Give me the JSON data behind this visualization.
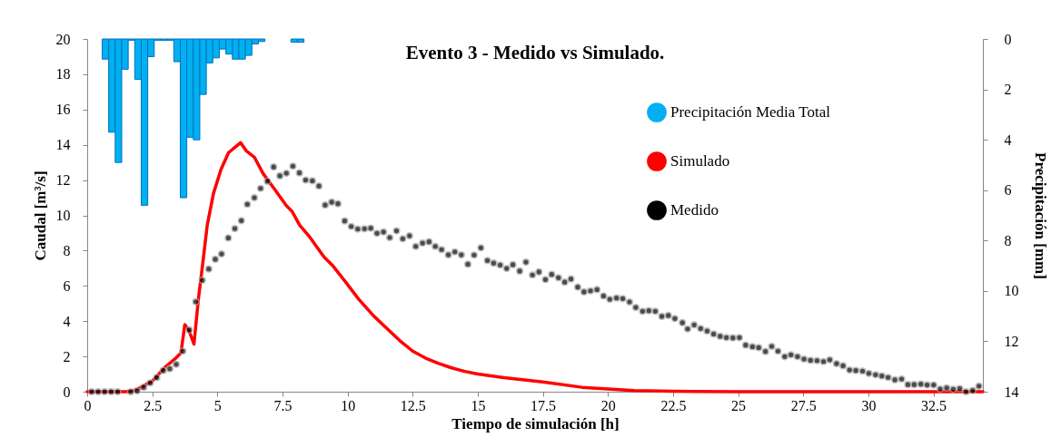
{
  "chart_data": {
    "type": "scatter",
    "title": "Evento 3 - Medido vs Simulado.",
    "xlabel": "Tiempo de simulación [h]",
    "ylabel": "Caudal [m³/s]",
    "y2label": "Precipitación [mm]",
    "xlim": [
      0,
      34.4
    ],
    "xticks": [
      0,
      2.5,
      5,
      7.5,
      10,
      12.5,
      15,
      17.5,
      20,
      22.5,
      25,
      27.5,
      30,
      32.5
    ],
    "ylim": [
      0,
      20
    ],
    "yticks": [
      0,
      2,
      4,
      6,
      8,
      10,
      12,
      14,
      16,
      18,
      20
    ],
    "y2lim": [
      14,
      0
    ],
    "y2ticks": [
      0,
      2,
      4,
      6,
      8,
      10,
      12,
      14
    ],
    "grid": false,
    "legend": "top right",
    "series": [
      {
        "type": "bar",
        "axis": "y2",
        "name": "Precipitación Media Total",
        "color": "#00b0f0",
        "x": [
          0.7,
          0.95,
          1.2,
          1.45,
          1.7,
          1.95,
          2.2,
          2.45,
          2.7,
          2.95,
          3.2,
          3.45,
          3.7,
          3.95,
          4.2,
          4.45,
          4.7,
          4.95,
          5.2,
          5.45,
          5.7,
          5.95,
          6.2,
          6.45,
          6.7,
          7.95,
          8.2
        ],
        "values": [
          0.8,
          3.7,
          4.9,
          1.2,
          0.05,
          1.6,
          6.6,
          0.7,
          0.05,
          0.05,
          0.05,
          0.9,
          6.3,
          3.9,
          4.0,
          2.2,
          0.95,
          0.75,
          0.4,
          0.6,
          0.8,
          0.8,
          0.65,
          0.2,
          0.1,
          0.13,
          0.13
        ]
      },
      {
        "type": "line",
        "name": "Simulado",
        "color": "#ff0000",
        "x": [
          0,
          1.5,
          1.75,
          2,
          2.5,
          3,
          3.4,
          3.6,
          3.75,
          3.9,
          4.1,
          4.27,
          4.44,
          4.61,
          4.85,
          5.14,
          5.43,
          5.89,
          6.12,
          6.42,
          6.76,
          7.23,
          7.64,
          7.87,
          8.16,
          8.51,
          9.09,
          9.44,
          9.9,
          10.43,
          11,
          11.5,
          12,
          12.5,
          13,
          13.5,
          14,
          14.5,
          15,
          16,
          17.5,
          19,
          20,
          21,
          22.5,
          25,
          34.4
        ],
        "values": [
          0,
          0,
          0.05,
          0.2,
          0.6,
          1.4,
          1.9,
          2.2,
          3.8,
          3.5,
          2.7,
          5.24,
          7.3,
          9.44,
          11.24,
          12.61,
          13.56,
          14.12,
          13.64,
          13.3,
          12.36,
          11.41,
          10.56,
          10.22,
          9.44,
          8.84,
          7.65,
          7.13,
          6.27,
          5.24,
          4.3,
          3.6,
          2.9,
          2.3,
          1.9,
          1.6,
          1.35,
          1.15,
          1.0,
          0.8,
          0.55,
          0.25,
          0.15,
          0.07,
          0.02,
          0,
          0
        ]
      },
      {
        "marker": "circle",
        "name": "Medido",
        "color": "#000000",
        "x": [
          0.17,
          0.42,
          0.67,
          0.92,
          1.17,
          1.67,
          1.92,
          2.17,
          2.42,
          2.67,
          2.92,
          3.17,
          3.42,
          3.67,
          3.92,
          4.17,
          4.42,
          4.67,
          4.92,
          5.16,
          5.42,
          5.67,
          5.92,
          6.15,
          6.42,
          6.66,
          6.92,
          7.16,
          7.4,
          7.65,
          7.9,
          8.15,
          8.39,
          8.65,
          8.9,
          9.14,
          9.39,
          9.63,
          9.89,
          10.14,
          10.39,
          10.65,
          10.89,
          11.13,
          11.38,
          11.62,
          11.88,
          12.12,
          12.38,
          12.62,
          12.88,
          13.13,
          13.37,
          13.61,
          13.87,
          14.12,
          14.37,
          14.62,
          14.86,
          15.12,
          15.37,
          15.61,
          15.86,
          16.11,
          16.35,
          16.61,
          16.85,
          17.1,
          17.35,
          17.6,
          17.84,
          18.1,
          18.34,
          18.58,
          18.84,
          19.08,
          19.33,
          19.58,
          19.83,
          20.07,
          20.33,
          20.57,
          20.83,
          21.07,
          21.33,
          21.57,
          21.82,
          22.07,
          22.32,
          22.57,
          22.86,
          23.06,
          23.31,
          23.56,
          23.81,
          24.06,
          24.31,
          24.55,
          24.8,
          25.05,
          25.29,
          25.55,
          25.79,
          26.05,
          26.29,
          26.53,
          26.79,
          27.03,
          27.28,
          27.53,
          27.78,
          28.03,
          28.28,
          28.52,
          28.78,
          29.03,
          29.28,
          29.52,
          29.78,
          30.02,
          30.28,
          30.52,
          30.76,
          31.02,
          31.28,
          31.52,
          31.76,
          32.02,
          32.26,
          32.51,
          32.76,
          33.01,
          33.26,
          33.51,
          33.75,
          34.01,
          34.25
        ],
        "values": [
          0,
          0,
          0,
          0,
          0,
          0,
          0.05,
          0.25,
          0.5,
          0.8,
          1.2,
          1.3,
          1.55,
          2.3,
          3.5,
          5.1,
          6.32,
          6.96,
          7.51,
          7.81,
          8.72,
          9.25,
          9.7,
          10.63,
          11.0,
          11.53,
          11.93,
          12.74,
          12.24,
          12.39,
          12.79,
          12.41,
          12.0,
          11.96,
          11.66,
          10.58,
          10.75,
          10.66,
          9.68,
          9.37,
          9.22,
          9.24,
          9.27,
          8.98,
          9.06,
          8.74,
          9.12,
          8.67,
          8.84,
          8.24,
          8.43,
          8.5,
          8.24,
          8.06,
          7.76,
          7.93,
          7.76,
          7.23,
          7.75,
          8.16,
          7.44,
          7.29,
          7.18,
          6.99,
          7.2,
          6.84,
          7.35,
          6.62,
          6.79,
          6.36,
          6.65,
          6.46,
          6.21,
          6.39,
          5.93,
          5.66,
          5.72,
          5.79,
          5.43,
          5.24,
          5.31,
          5.28,
          5.09,
          4.78,
          4.56,
          4.59,
          4.56,
          4.27,
          4.32,
          4.15,
          3.91,
          3.56,
          3.79,
          3.58,
          3.44,
          3.27,
          3.14,
          3.07,
          3.05,
          3.07,
          2.64,
          2.55,
          2.5,
          2.28,
          2.57,
          2.3,
          1.99,
          2.09,
          1.99,
          1.85,
          1.78,
          1.76,
          1.71,
          1.81,
          1.59,
          1.47,
          1.23,
          1.2,
          1.17,
          1.04,
          0.96,
          0.89,
          0.81,
          0.67,
          0.72,
          0.4,
          0.4,
          0.43,
          0.38,
          0.38,
          0.15,
          0.21,
          0.14,
          0.17,
          0,
          0.07,
          0.32
        ]
      }
    ]
  }
}
